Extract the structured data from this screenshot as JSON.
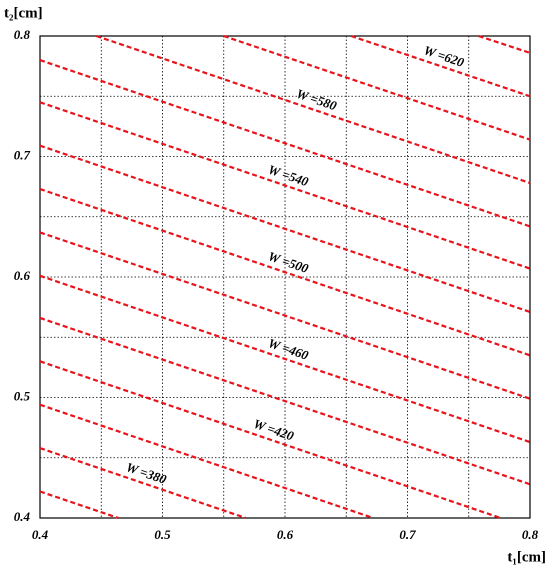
{
  "chart_data": {
    "type": "contour",
    "x_label": "t₁[cm]",
    "y_label": "t₂[cm]",
    "xlim": [
      0.4,
      0.8
    ],
    "ylim": [
      0.4,
      0.8
    ],
    "xticks": [
      0.4,
      0.5,
      0.6,
      0.7,
      0.8
    ],
    "yticks": [
      0.4,
      0.5,
      0.6,
      0.7,
      0.8
    ],
    "x_minor_grid": [
      0.45,
      0.55,
      0.65,
      0.75
    ],
    "y_minor_grid": [
      0.45,
      0.55,
      0.65,
      0.75
    ],
    "grid": true,
    "color": "#e8141b",
    "series": [
      {
        "x": [
          0.4,
          0.464
        ],
        "y": [
          0.422,
          0.4
        ]
      },
      {
        "name": "W =380",
        "x": [
          0.4,
          0.568
        ],
        "y": [
          0.458,
          0.4
        ]
      },
      {
        "x": [
          0.4,
          0.672
        ],
        "y": [
          0.494,
          0.4
        ]
      },
      {
        "name": "W =420",
        "x": [
          0.4,
          0.776
        ],
        "y": [
          0.53,
          0.4
        ]
      },
      {
        "x": [
          0.4,
          0.8
        ],
        "y": [
          0.566,
          0.428
        ]
      },
      {
        "name": "W =460",
        "x": [
          0.4,
          0.8
        ],
        "y": [
          0.601,
          0.463
        ]
      },
      {
        "x": [
          0.4,
          0.8
        ],
        "y": [
          0.637,
          0.499
        ]
      },
      {
        "name": "W =500",
        "x": [
          0.4,
          0.8
        ],
        "y": [
          0.673,
          0.535
        ]
      },
      {
        "x": [
          0.4,
          0.8
        ],
        "y": [
          0.709,
          0.571
        ]
      },
      {
        "name": "W =540",
        "x": [
          0.4,
          0.8
        ],
        "y": [
          0.745,
          0.607
        ]
      },
      {
        "x": [
          0.4,
          0.8
        ],
        "y": [
          0.78,
          0.642
        ]
      },
      {
        "name": "W =580",
        "x": [
          0.446,
          0.8
        ],
        "y": [
          0.8,
          0.678
        ]
      },
      {
        "x": [
          0.55,
          0.8
        ],
        "y": [
          0.8,
          0.714
        ]
      },
      {
        "name": "W =620",
        "x": [
          0.654,
          0.8
        ],
        "y": [
          0.8,
          0.75
        ]
      },
      {
        "x": [
          0.758,
          0.8
        ],
        "y": [
          0.8,
          0.786
        ]
      }
    ]
  }
}
